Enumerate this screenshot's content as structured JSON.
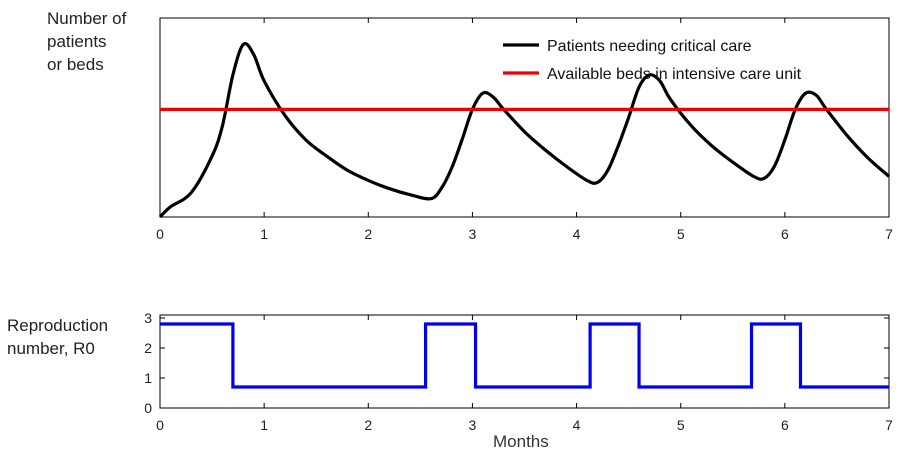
{
  "chart_data": [
    {
      "type": "line",
      "ylabel": "Number of\npatients\nor beds",
      "xlabel": "",
      "xlim": [
        0,
        7
      ],
      "xticks": [
        "0",
        "1",
        "2",
        "3",
        "4",
        "5",
        "6",
        "7"
      ],
      "yticks": [],
      "legend": {
        "placement": "top-right"
      },
      "series": [
        {
          "name": "Patients needing critical care",
          "color": "#000000",
          "x": [
            0,
            0.1,
            0.3,
            0.5,
            0.6,
            0.7,
            0.8,
            0.9,
            1.0,
            1.2,
            1.4,
            1.6,
            1.8,
            2.0,
            2.2,
            2.4,
            2.6,
            2.7,
            2.8,
            2.9,
            3.0,
            3.1,
            3.2,
            3.3,
            3.5,
            3.7,
            3.9,
            4.1,
            4.2,
            4.3,
            4.4,
            4.5,
            4.6,
            4.7,
            4.8,
            4.9,
            5.1,
            5.3,
            5.5,
            5.7,
            5.8,
            5.9,
            6.0,
            6.1,
            6.2,
            6.3,
            6.4,
            6.6,
            6.8,
            7.0
          ],
          "y": [
            0,
            0.05,
            0.12,
            0.3,
            0.45,
            0.7,
            0.85,
            0.8,
            0.67,
            0.5,
            0.38,
            0.3,
            0.23,
            0.18,
            0.14,
            0.11,
            0.09,
            0.14,
            0.24,
            0.38,
            0.53,
            0.61,
            0.59,
            0.53,
            0.42,
            0.33,
            0.25,
            0.18,
            0.17,
            0.23,
            0.35,
            0.49,
            0.64,
            0.7,
            0.67,
            0.58,
            0.45,
            0.35,
            0.27,
            0.2,
            0.19,
            0.25,
            0.38,
            0.53,
            0.61,
            0.6,
            0.53,
            0.4,
            0.29,
            0.2
          ]
        },
        {
          "name": "Available beds in intensive care unit",
          "color": "#ee0000",
          "x": [
            0,
            7
          ],
          "y": [
            0.53,
            0.53
          ]
        }
      ]
    },
    {
      "type": "line",
      "ylabel": "Reproduction\nnumber, R0",
      "xlabel": "Months",
      "xlim": [
        0,
        7
      ],
      "ylim": [
        0,
        3
      ],
      "xticks": [
        "0",
        "1",
        "2",
        "3",
        "4",
        "5",
        "6",
        "7"
      ],
      "yticks": [
        "0",
        "1",
        "2",
        "3"
      ],
      "series": [
        {
          "name": "",
          "color": "#0000ee",
          "x": [
            0,
            0.7,
            0.7,
            2.55,
            2.55,
            3.03,
            3.03,
            4.13,
            4.13,
            4.6,
            4.6,
            5.68,
            5.68,
            6.15,
            6.15,
            7.0
          ],
          "y": [
            2.8,
            2.8,
            0.7,
            0.7,
            2.8,
            2.8,
            0.7,
            0.7,
            2.8,
            2.8,
            0.7,
            0.7,
            2.8,
            2.8,
            0.7,
            0.7
          ]
        }
      ]
    }
  ]
}
